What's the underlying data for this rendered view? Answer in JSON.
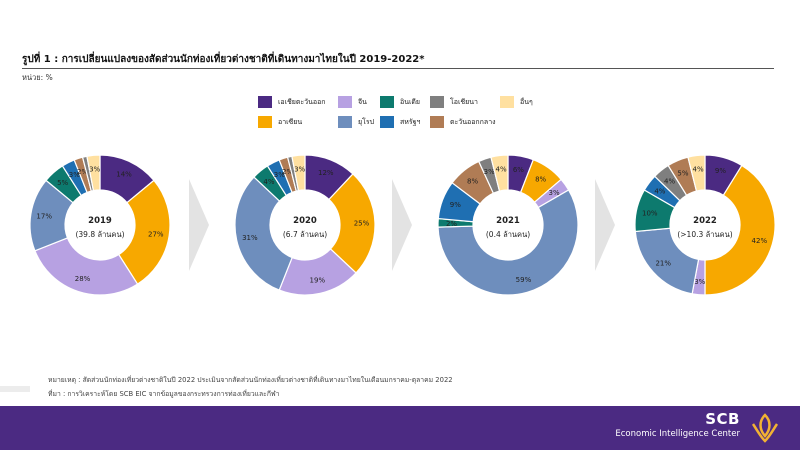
{
  "page": {
    "title": "รูปที่ 1 : การเปลี่ยนแปลงของสัดส่วนนักท่องเที่ยวต่างชาติที่เดินทางมาไทยในปี 2019-2022*",
    "unit": "หน่วย: %"
  },
  "legend": [
    {
      "label": "เอเชียตะวันออก",
      "color": "#4b2a82"
    },
    {
      "label": "จีน",
      "color": "#b7a1e2"
    },
    {
      "label": "อินเดีย",
      "color": "#0d7a6e"
    },
    {
      "label": "โอเชียนา",
      "color": "#7f7f7f"
    },
    {
      "label": "อื่นๆ",
      "color": "#ffe0a0"
    },
    {
      "label": "อาเซียน",
      "color": "#f7a800"
    },
    {
      "label": "ยุโรป",
      "color": "#6e8ebd"
    },
    {
      "label": "สหรัฐฯ",
      "color": "#1f6fb2"
    },
    {
      "label": "ตะวันออกกลาง",
      "color": "#b07c55"
    }
  ],
  "chart_data": [
    {
      "type": "pie",
      "center_label": "2019",
      "center_sublabel": "(39.8 ล้านคน)",
      "slices": [
        {
          "name": "เอเชียตะวันออก",
          "value": 14,
          "label": "14%"
        },
        {
          "name": "อาเซียน",
          "value": 27,
          "label": "27%"
        },
        {
          "name": "จีน",
          "value": 28,
          "label": "28%"
        },
        {
          "name": "ยุโรป",
          "value": 17,
          "label": "17%"
        },
        {
          "name": "อินเดีย",
          "value": 5,
          "label": "5%"
        },
        {
          "name": "สหรัฐฯ",
          "value": 3,
          "label": "3%"
        },
        {
          "name": "ตะวันออกกลาง",
          "value": 2,
          "label": "2%"
        },
        {
          "name": "โอเชียนา",
          "value": 1,
          "label": ""
        },
        {
          "name": "อื่นๆ",
          "value": 3,
          "label": "3%"
        }
      ]
    },
    {
      "type": "pie",
      "center_label": "2020",
      "center_sublabel": "(6.7 ล้านคน)",
      "slices": [
        {
          "name": "เอเชียตะวันออก",
          "value": 12,
          "label": "12%"
        },
        {
          "name": "อาเซียน",
          "value": 25,
          "label": "25%"
        },
        {
          "name": "จีน",
          "value": 19,
          "label": "19%"
        },
        {
          "name": "ยุโรป",
          "value": 31,
          "label": "31%"
        },
        {
          "name": "อินเดีย",
          "value": 4,
          "label": "4%"
        },
        {
          "name": "สหรัฐฯ",
          "value": 3,
          "label": "3%"
        },
        {
          "name": "ตะวันออกกลาง",
          "value": 2,
          "label": "2%"
        },
        {
          "name": "โอเชียนา",
          "value": 1,
          "label": ""
        },
        {
          "name": "อื่นๆ",
          "value": 3,
          "label": "3%"
        }
      ]
    },
    {
      "type": "pie",
      "center_label": "2021",
      "center_sublabel": "(0.4 ล้านคน)",
      "slices": [
        {
          "name": "เอเชียตะวันออก",
          "value": 6,
          "label": "6%"
        },
        {
          "name": "อาเซียน",
          "value": 8,
          "label": "8%"
        },
        {
          "name": "จีน",
          "value": 3,
          "label": "3%"
        },
        {
          "name": "ยุโรป",
          "value": 59,
          "label": "59%"
        },
        {
          "name": "อินเดีย",
          "value": 2,
          "label": "2%"
        },
        {
          "name": "สหรัฐฯ",
          "value": 9,
          "label": "9%"
        },
        {
          "name": "ตะวันออกกลาง",
          "value": 8,
          "label": "8%"
        },
        {
          "name": "โอเชียนา",
          "value": 3,
          "label": "3%"
        },
        {
          "name": "อื่นๆ",
          "value": 4,
          "label": "4%"
        }
      ]
    },
    {
      "type": "pie",
      "center_label": "2022",
      "center_sublabel": "(>10.3 ล้านคน)",
      "slices": [
        {
          "name": "เอเชียตะวันออก",
          "value": 9,
          "label": "9%"
        },
        {
          "name": "อาเซียน",
          "value": 42,
          "label": "42%"
        },
        {
          "name": "จีน",
          "value": 3,
          "label": "3%"
        },
        {
          "name": "ยุโรป",
          "value": 21,
          "label": "21%"
        },
        {
          "name": "อินเดีย",
          "value": 10,
          "label": "10%"
        },
        {
          "name": "สหรัฐฯ",
          "value": 4,
          "label": "4%"
        },
        {
          "name": "โอเชียนา",
          "value": 4,
          "label": "4%"
        },
        {
          "name": "ตะวันออกกลาง",
          "value": 5,
          "label": "5%"
        },
        {
          "name": "อื่นๆ",
          "value": 4,
          "label": "4%"
        }
      ]
    }
  ],
  "notes": {
    "remark": "หมายเหตุ : สัดส่วนนักท่องเที่ยวต่างชาติในปี 2022 ประเมินจากสัดส่วนนักท่องเที่ยวต่างชาติที่เดินทางมาไทยในเดือนมกราคม-ตุลาคม 2022",
    "source": "ที่มา : การวิเคราะห์โดย SCB EIC จากข้อมูลของกระทรวงการท่องเที่ยวและกีฬา"
  },
  "footer": {
    "brand": "SCB",
    "subtitle": "Economic Intelligence Center",
    "background": "#4b2a82"
  }
}
